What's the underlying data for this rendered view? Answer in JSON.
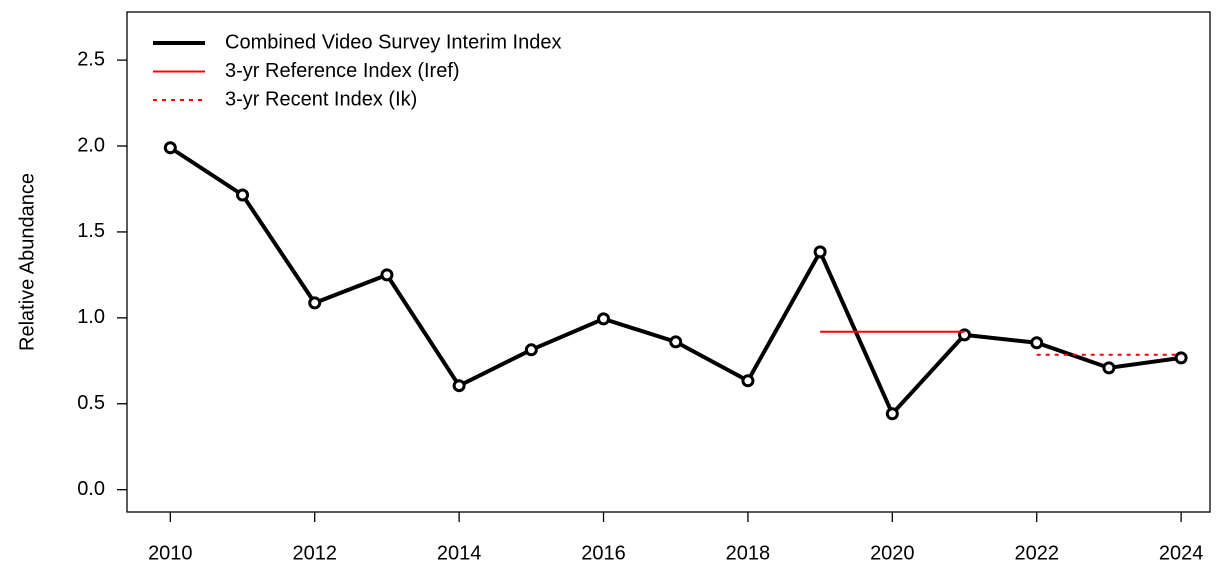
{
  "chart_data": {
    "type": "line",
    "ylabel": "Relative Abundance",
    "series": [
      {
        "name": "Combined Video Survey Interim Index",
        "color": "#000000",
        "style": "solid",
        "markers": true,
        "x": [
          2010,
          2011,
          2012,
          2013,
          2014,
          2015,
          2016,
          2017,
          2018,
          2019,
          2020,
          2021,
          2022,
          2023,
          2024
        ],
        "values": [
          1.99,
          1.715,
          1.087,
          1.25,
          0.605,
          0.814,
          0.994,
          0.86,
          0.634,
          1.384,
          0.442,
          0.901,
          0.855,
          0.709,
          0.767
        ]
      },
      {
        "name": "3-yr Reference Index (Iref)",
        "color": "#ff0000",
        "style": "solid",
        "markers": false,
        "x": [
          2019,
          2021
        ],
        "values": [
          0.919,
          0.919
        ]
      },
      {
        "name": "3-yr Recent Index (Ik)",
        "color": "#ff0000",
        "style": "dotted",
        "markers": false,
        "x": [
          2022,
          2024
        ],
        "values": [
          0.785,
          0.785
        ]
      }
    ],
    "xlim": [
      2009.4,
      2024.4
    ],
    "xticks": [
      2010,
      2012,
      2014,
      2016,
      2018,
      2020,
      2022,
      2024
    ],
    "ylim": [
      -0.13,
      2.78
    ],
    "yticks": [
      {
        "value": 0,
        "label": "0.0"
      },
      0.5,
      {
        "value": 1,
        "label": "1.0"
      },
      1.5,
      {
        "value": 2,
        "label": "2.0"
      },
      2.5
    ],
    "legend": "top-left",
    "grid": false
  }
}
